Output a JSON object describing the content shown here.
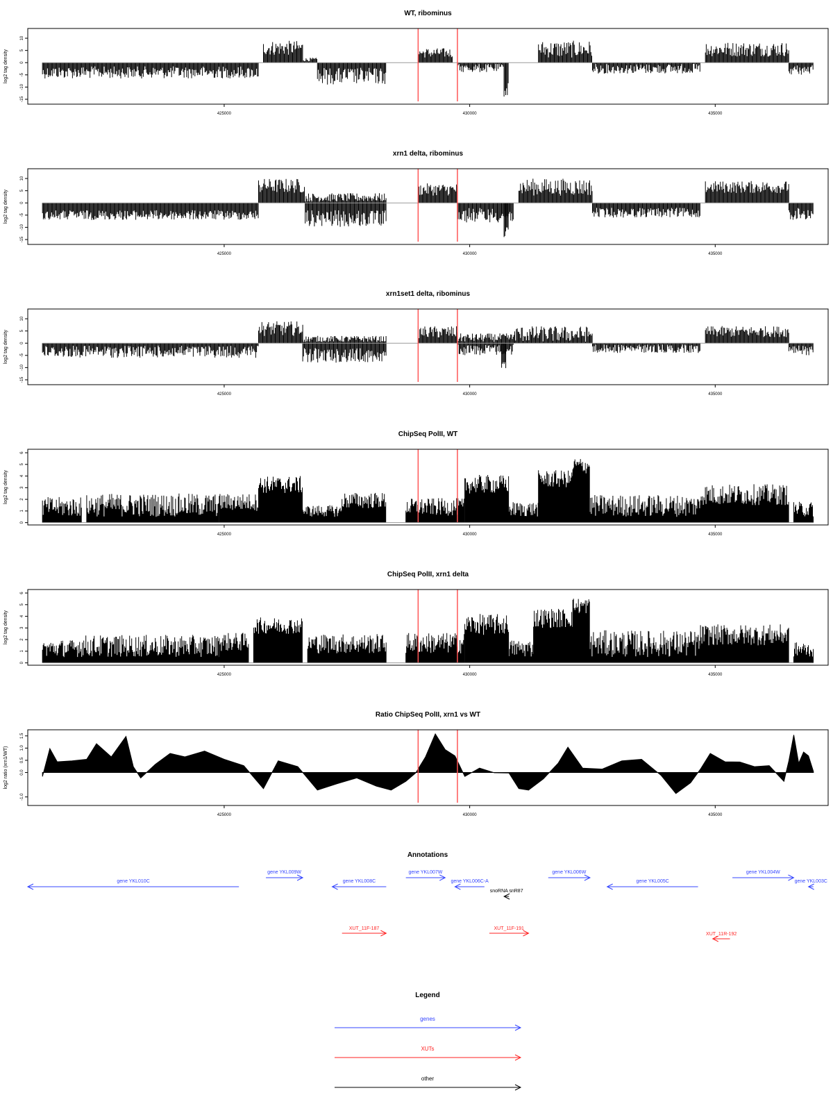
{
  "chart_data": [
    {
      "type": "bar",
      "title": "WT, ribominus",
      "ylabel": "log2 tag density",
      "xlim": [
        421000,
        437300
      ],
      "ylim": [
        -17,
        14
      ],
      "yticks": [
        "-15",
        "-10",
        "-5",
        "0",
        "5",
        "10"
      ],
      "xticks": [
        "425000",
        "430000",
        "435000"
      ],
      "highlight_x": [
        428950,
        429750
      ],
      "segments": [
        {
          "x": [
            421300,
            425700
          ],
          "sign": -1,
          "lo": 1.5,
          "hi": 6.5
        },
        {
          "x": [
            425800,
            426600
          ],
          "sign": 1,
          "lo": 3,
          "hi": 9
        },
        {
          "x": [
            426600,
            426900
          ],
          "sign": 1,
          "lo": 0.5,
          "hi": 2
        },
        {
          "x": [
            426900,
            428300
          ],
          "sign": -1,
          "lo": 2,
          "hi": 9
        },
        {
          "x": [
            428950,
            429650
          ],
          "sign": 1,
          "lo": 2,
          "hi": 6
        },
        {
          "x": [
            429750,
            430700
          ],
          "sign": -1,
          "lo": 0.5,
          "hi": 4
        },
        {
          "x": [
            430700,
            430800
          ],
          "sign": -1,
          "lo": 8,
          "hi": 14
        },
        {
          "x": [
            431400,
            432500
          ],
          "sign": 1,
          "lo": 2,
          "hi": 9
        },
        {
          "x": [
            432500,
            434700
          ],
          "sign": -1,
          "lo": 0.5,
          "hi": 4.5
        },
        {
          "x": [
            434800,
            436500
          ],
          "sign": 1,
          "lo": 2.5,
          "hi": 8.5
        },
        {
          "x": [
            436500,
            437000
          ],
          "sign": -1,
          "lo": 1,
          "hi": 5
        }
      ]
    },
    {
      "type": "bar",
      "title": "xrn1 delta, ribominus",
      "ylabel": "log2 tag density",
      "xlim": [
        421000,
        437300
      ],
      "ylim": [
        -17,
        14
      ],
      "yticks": [
        "-15",
        "-10",
        "-5",
        "0",
        "5",
        "10"
      ],
      "xticks": [
        "425000",
        "430000",
        "435000"
      ],
      "highlight_x": [
        428950,
        429750
      ],
      "segments": [
        {
          "x": [
            421300,
            425700
          ],
          "sign": -1,
          "lo": 3,
          "hi": 7
        },
        {
          "x": [
            425700,
            426650
          ],
          "sign": 1,
          "lo": 4,
          "hi": 10
        },
        {
          "x": [
            426650,
            428300
          ],
          "sign": -1,
          "lo": 3,
          "hi": 10
        },
        {
          "x": [
            426650,
            428300
          ],
          "sign": 1,
          "lo": 0.5,
          "hi": 4
        },
        {
          "x": [
            428950,
            429750
          ],
          "sign": 1,
          "lo": 3,
          "hi": 8
        },
        {
          "x": [
            429750,
            430900
          ],
          "sign": -1,
          "lo": 2,
          "hi": 8
        },
        {
          "x": [
            430700,
            430800
          ],
          "sign": -1,
          "lo": 10,
          "hi": 15
        },
        {
          "x": [
            431000,
            432500
          ],
          "sign": 1,
          "lo": 3,
          "hi": 10
        },
        {
          "x": [
            432500,
            434700
          ],
          "sign": -1,
          "lo": 2,
          "hi": 6
        },
        {
          "x": [
            434800,
            436500
          ],
          "sign": 1,
          "lo": 4,
          "hi": 9
        },
        {
          "x": [
            436500,
            437000
          ],
          "sign": -1,
          "lo": 2,
          "hi": 7
        }
      ]
    },
    {
      "type": "bar",
      "title": "xrn1set1 delta, ribominus",
      "ylabel": "log2 tag density",
      "xlim": [
        421000,
        437300
      ],
      "ylim": [
        -17,
        14
      ],
      "yticks": [
        "-15",
        "-10",
        "-5",
        "0",
        "5",
        "10"
      ],
      "xticks": [
        "425000",
        "430000",
        "435000"
      ],
      "highlight_x": [
        428950,
        429750
      ],
      "segments": [
        {
          "x": [
            421300,
            425700
          ],
          "sign": -1,
          "lo": 1,
          "hi": 6
        },
        {
          "x": [
            425700,
            426600
          ],
          "sign": 1,
          "lo": 3,
          "hi": 9
        },
        {
          "x": [
            426600,
            428300
          ],
          "sign": -1,
          "lo": 2,
          "hi": 8
        },
        {
          "x": [
            426600,
            428300
          ],
          "sign": 1,
          "lo": 0.5,
          "hi": 3
        },
        {
          "x": [
            428950,
            429750
          ],
          "sign": 1,
          "lo": 2,
          "hi": 7
        },
        {
          "x": [
            429750,
            430900
          ],
          "sign": 1,
          "lo": 0.5,
          "hi": 4
        },
        {
          "x": [
            429750,
            430900
          ],
          "sign": -1,
          "lo": 0.5,
          "hi": 5
        },
        {
          "x": [
            430650,
            430750
          ],
          "sign": -1,
          "lo": 6,
          "hi": 11
        },
        {
          "x": [
            430900,
            432500
          ],
          "sign": 1,
          "lo": 0.5,
          "hi": 7
        },
        {
          "x": [
            432500,
            434700
          ],
          "sign": -1,
          "lo": 0.5,
          "hi": 4
        },
        {
          "x": [
            434800,
            436500
          ],
          "sign": 1,
          "lo": 2.5,
          "hi": 7
        },
        {
          "x": [
            436500,
            437000
          ],
          "sign": -1,
          "lo": 1,
          "hi": 5
        }
      ]
    },
    {
      "type": "bar",
      "title": "ChipSeq PolII, WT",
      "ylabel": "log2 tag density",
      "xlim": [
        421000,
        437300
      ],
      "ylim": [
        -0.2,
        6.3
      ],
      "yticks": [
        "0",
        "1",
        "2",
        "3",
        "4",
        "5",
        "6"
      ],
      "xticks": [
        "425000",
        "430000",
        "435000"
      ],
      "highlight_x": [
        428950,
        429750
      ],
      "segments": [
        {
          "x": [
            421300,
            422100
          ],
          "sign": 1,
          "lo": 0.5,
          "hi": 2.2
        },
        {
          "x": [
            422200,
            424900
          ],
          "sign": 1,
          "lo": 0.5,
          "hi": 2.5
        },
        {
          "x": [
            424900,
            425700
          ],
          "sign": 1,
          "lo": 1,
          "hi": 2.5
        },
        {
          "x": [
            425700,
            426600
          ],
          "sign": 1,
          "lo": 2.5,
          "hi": 4
        },
        {
          "x": [
            426600,
            427400
          ],
          "sign": 1,
          "lo": 0.5,
          "hi": 1.5
        },
        {
          "x": [
            427400,
            428300
          ],
          "sign": 1,
          "lo": 1.2,
          "hi": 2.6
        },
        {
          "x": [
            428700,
            429900
          ],
          "sign": 1,
          "lo": 0.6,
          "hi": 2.1
        },
        {
          "x": [
            429900,
            430800
          ],
          "sign": 1,
          "lo": 2.5,
          "hi": 4.1
        },
        {
          "x": [
            430800,
            431400
          ],
          "sign": 1,
          "lo": 0.5,
          "hi": 1.8
        },
        {
          "x": [
            431400,
            432100
          ],
          "sign": 1,
          "lo": 3,
          "hi": 4.5
        },
        {
          "x": [
            432100,
            432450
          ],
          "sign": 1,
          "lo": 4.2,
          "hi": 5.6
        },
        {
          "x": [
            432450,
            434700
          ],
          "sign": 1,
          "lo": 0.5,
          "hi": 2.4
        },
        {
          "x": [
            434700,
            436500
          ],
          "sign": 1,
          "lo": 1.5,
          "hi": 3.3
        },
        {
          "x": [
            436600,
            437000
          ],
          "sign": 1,
          "lo": 0.5,
          "hi": 1.8
        }
      ]
    },
    {
      "type": "bar",
      "title": "ChipSeq PolII, xrn1 delta",
      "ylabel": "log2 tag density",
      "xlim": [
        421000,
        437300
      ],
      "ylim": [
        -0.2,
        6.3
      ],
      "yticks": [
        "0",
        "1",
        "2",
        "3",
        "4",
        "5",
        "6"
      ],
      "xticks": [
        "425000",
        "430000",
        "435000"
      ],
      "highlight_x": [
        428950,
        429750
      ],
      "segments": [
        {
          "x": [
            421300,
            422000
          ],
          "sign": 1,
          "lo": 0.5,
          "hi": 2
        },
        {
          "x": [
            422000,
            424900
          ],
          "sign": 1,
          "lo": 0.5,
          "hi": 2.4
        },
        {
          "x": [
            424900,
            425500
          ],
          "sign": 1,
          "lo": 1,
          "hi": 2.6
        },
        {
          "x": [
            425600,
            426600
          ],
          "sign": 1,
          "lo": 2.5,
          "hi": 3.9
        },
        {
          "x": [
            426700,
            428300
          ],
          "sign": 1,
          "lo": 0.8,
          "hi": 2.5
        },
        {
          "x": [
            428700,
            429900
          ],
          "sign": 1,
          "lo": 0.8,
          "hi": 2.6
        },
        {
          "x": [
            429900,
            430800
          ],
          "sign": 1,
          "lo": 2.4,
          "hi": 4.2
        },
        {
          "x": [
            430800,
            431300
          ],
          "sign": 1,
          "lo": 0.5,
          "hi": 2
        },
        {
          "x": [
            431300,
            432100
          ],
          "sign": 1,
          "lo": 3,
          "hi": 4.7
        },
        {
          "x": [
            432100,
            432450
          ],
          "sign": 1,
          "lo": 4.2,
          "hi": 5.6
        },
        {
          "x": [
            432450,
            434700
          ],
          "sign": 1,
          "lo": 0.5,
          "hi": 2.8
        },
        {
          "x": [
            434700,
            436500
          ],
          "sign": 1,
          "lo": 1.5,
          "hi": 3.3
        },
        {
          "x": [
            436600,
            437000
          ],
          "sign": 1,
          "lo": 0.5,
          "hi": 1.8
        }
      ]
    },
    {
      "type": "area",
      "title": "Ratio ChipSeq PolII, xrn1 vs WT",
      "ylabel": "log2 ratio (xrn1/WT)",
      "xlim": [
        421000,
        437300
      ],
      "ylim": [
        -1.35,
        1.75
      ],
      "yticks": [
        "-1.0",
        "0.0",
        "0.5",
        "1.0",
        "1.5"
      ],
      "xticks": [
        "425000",
        "430000",
        "435000"
      ],
      "highlight_x": [
        428950,
        429750
      ],
      "x": [
        421300,
        421450,
        421600,
        421900,
        422200,
        422400,
        422700,
        423000,
        423150,
        423300,
        423600,
        423900,
        424200,
        424600,
        425000,
        425400,
        425800,
        426100,
        426500,
        426900,
        427300,
        427700,
        428100,
        428400,
        428700,
        428900,
        429100,
        429300,
        429500,
        429700,
        429900,
        430200,
        430500,
        430800,
        431000,
        431200,
        431500,
        431800,
        432000,
        432300,
        432700,
        433100,
        433500,
        433900,
        434200,
        434500,
        434700,
        434900,
        435200,
        435500,
        435800,
        436100,
        436400,
        436500,
        436600,
        436700,
        436800,
        436900,
        437000
      ],
      "values": [
        -0.1,
        0.9,
        0.5,
        0.4,
        0.6,
        1.1,
        0.7,
        1.4,
        0.3,
        -0.3,
        0.4,
        0.7,
        0.7,
        0.8,
        0.6,
        0.2,
        -0.6,
        0.4,
        0.3,
        -0.8,
        -0.4,
        -0.3,
        -0.5,
        -0.8,
        -0.3,
        -0.1,
        0.7,
        1.5,
        1.0,
        0.6,
        -0.1,
        0.1,
        0.05,
        -0.1,
        -0.6,
        -0.8,
        -0.2,
        0.3,
        1.1,
        0.1,
        0.2,
        0.4,
        0.6,
        -0.2,
        -0.8,
        -0.5,
        0.2,
        0.7,
        0.5,
        0.35,
        0.3,
        0.2,
        -0.3,
        0.4,
        1.6,
        0.3,
        0.9,
        0.6,
        0.1
      ]
    }
  ],
  "annotations": {
    "title": "Annotations",
    "items": [
      {
        "label": "gene YKL010C",
        "x": [
          421000,
          425300
        ],
        "row": 1,
        "dir": "left",
        "color": "#3344ff"
      },
      {
        "label": "gene YKL009W",
        "x": [
          425850,
          426600
        ],
        "row": 0,
        "dir": "right",
        "color": "#3344ff"
      },
      {
        "label": "gene YKL008C",
        "x": [
          427200,
          428300
        ],
        "row": 1,
        "dir": "left",
        "color": "#3344ff"
      },
      {
        "label": "gene YKL007W",
        "x": [
          428700,
          429500
        ],
        "row": 0,
        "dir": "right",
        "color": "#3344ff"
      },
      {
        "label": "gene YKL006C-A",
        "x": [
          429700,
          430300
        ],
        "row": 1,
        "dir": "left",
        "color": "#3344ff"
      },
      {
        "label": "snoRNA snR87",
        "x": [
          430700,
          430800
        ],
        "row": 2,
        "dir": "left",
        "color": "#000000"
      },
      {
        "label": "gene YKL006W",
        "x": [
          431600,
          432450
        ],
        "row": 0,
        "dir": "right",
        "color": "#3344ff"
      },
      {
        "label": "gene YKL005C",
        "x": [
          432800,
          434650
        ],
        "row": 1,
        "dir": "left",
        "color": "#3344ff"
      },
      {
        "label": "gene YKL004W",
        "x": [
          435350,
          436600
        ],
        "row": 0,
        "dir": "right",
        "color": "#3344ff"
      },
      {
        "label": "gene YKL003C",
        "x": [
          436900,
          437000
        ],
        "row": 1,
        "dir": "left",
        "color": "#3344ff"
      },
      {
        "label": "XUT_11F-187",
        "x": [
          427400,
          428300
        ],
        "row": 3,
        "dir": "right",
        "color": "#ff2222"
      },
      {
        "label": "XUT_11F-191",
        "x": [
          430400,
          431200
        ],
        "row": 3,
        "dir": "right",
        "color": "#ff2222"
      },
      {
        "label": "XUT_11R-192",
        "x": [
          434950,
          435300
        ],
        "row": 4,
        "dir": "left",
        "color": "#ff2222"
      }
    ]
  },
  "legend": {
    "title": "Legend",
    "items": [
      {
        "label": "genes",
        "color": "#3344ff"
      },
      {
        "label": "XUTs",
        "color": "#ff2222"
      },
      {
        "label": "other",
        "color": "#000000"
      }
    ]
  }
}
